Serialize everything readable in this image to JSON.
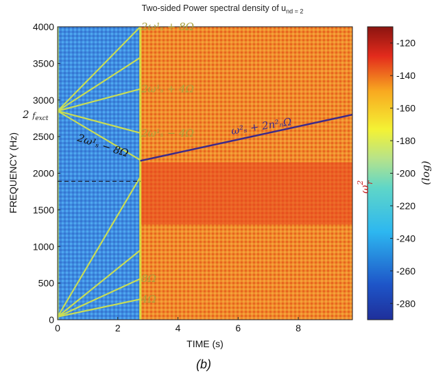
{
  "chart_data": {
    "type": "heatmap",
    "title_main": "Two-sided Power spectral density of u",
    "title_sub": "nd = 2",
    "xlabel": "TIME (s)",
    "ylabel": "FREQUENCY (Hz)",
    "xlim": [
      0,
      9.8
    ],
    "ylim": [
      0,
      4000
    ],
    "x_ticks": [
      "0",
      "2",
      "4",
      "6",
      "8"
    ],
    "y_ticks": [
      "0",
      "500",
      "1000",
      "1500",
      "2000",
      "2500",
      "3000",
      "3500",
      "4000"
    ],
    "colorbar": {
      "label": "(log)",
      "range": [
        -290,
        -110
      ],
      "ticks": [
        "-120",
        "-140",
        "-160",
        "-180",
        "-200",
        "-220",
        "-240",
        "-260",
        "-280"
      ],
      "colormap": "jet"
    },
    "regions": [
      {
        "t_start": 0,
        "t_end": 2.75,
        "level": -240,
        "description_color": "blue"
      },
      {
        "t_start": 2.75,
        "t_end": 9.8,
        "level": -150,
        "description_color": "orange"
      }
    ],
    "fan_lines": [
      {
        "label": "2ω¹ₛ + 8Ω",
        "from": [
          0,
          2850
        ],
        "to": [
          2.75,
          4000
        ]
      },
      {
        "label": "",
        "from": [
          0,
          2850
        ],
        "to": [
          2.75,
          3580
        ]
      },
      {
        "label": "2ω¹ₛ + 4Ω",
        "from": [
          0,
          2850
        ],
        "to": [
          2.75,
          3150
        ]
      },
      {
        "label": "2ω¹ₛ − 4Ω",
        "from": [
          0,
          2850
        ],
        "to": [
          2.75,
          2550
        ]
      },
      {
        "label": "2ω¹ₛ − 8Ω",
        "from": [
          0,
          2850
        ],
        "to": [
          2.75,
          2180
        ]
      },
      {
        "label": "",
        "from": [
          0,
          40
        ],
        "to": [
          2.75,
          1950
        ]
      },
      {
        "label": "",
        "from": [
          0,
          40
        ],
        "to": [
          2.75,
          950
        ]
      },
      {
        "label": "8Ω",
        "from": [
          0,
          40
        ],
        "to": [
          2.75,
          560
        ]
      },
      {
        "label": "4Ω",
        "from": [
          0,
          40
        ],
        "to": [
          2.75,
          280
        ]
      }
    ],
    "trend_line": {
      "label": "ω²ₛ + 2n²ₙΩ",
      "x": [
        2.75,
        9.8
      ],
      "y": [
        2170,
        2800
      ]
    },
    "reference_line": {
      "y": 1890,
      "style": "dashed"
    },
    "annotations": {
      "excitation": "2 f_exct",
      "rotor": "ω²ᵣ"
    },
    "panel_label": "(b)"
  }
}
